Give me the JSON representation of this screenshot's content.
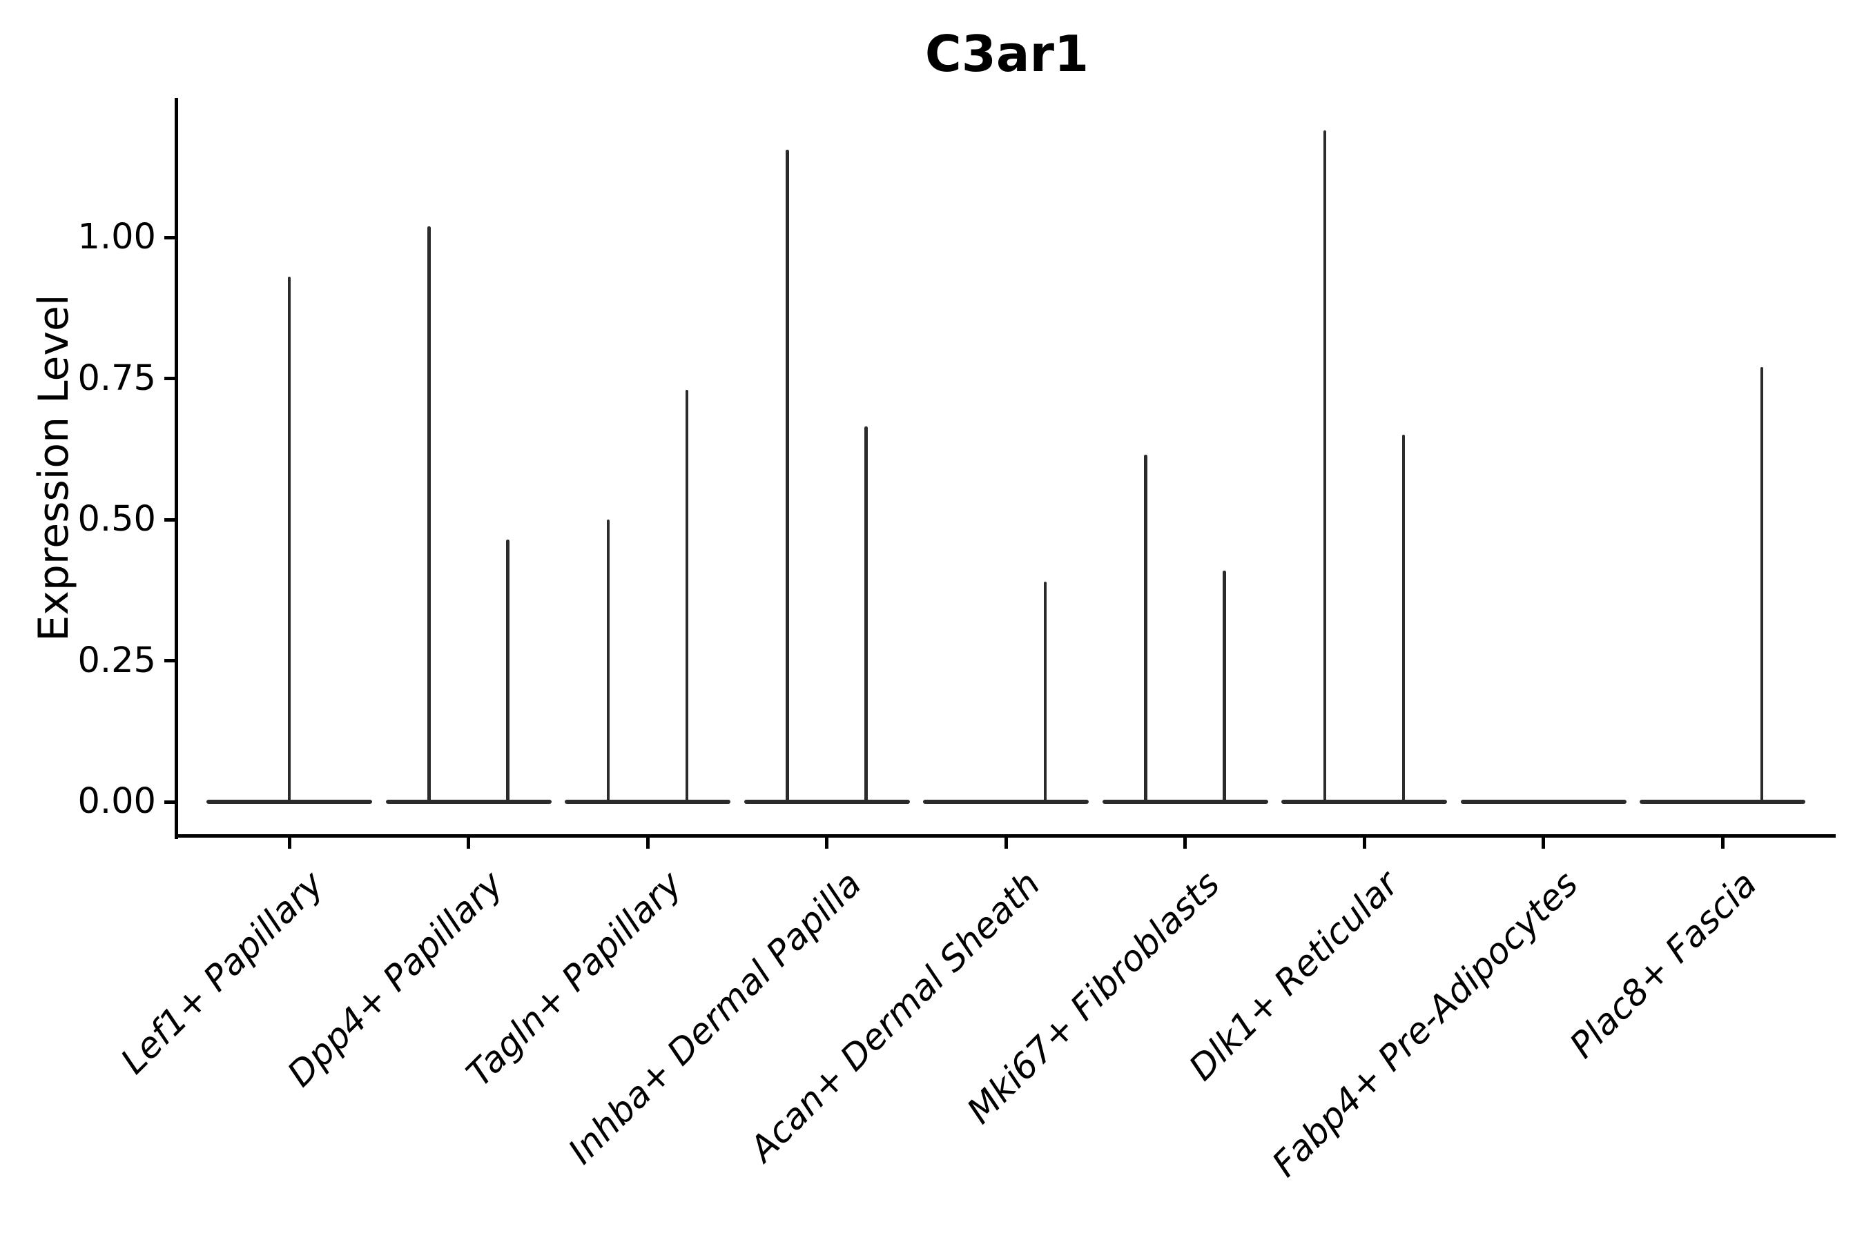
{
  "chart_data": {
    "type": "violin",
    "title": "C3ar1",
    "ylabel": "Expression Level",
    "xlabel": "",
    "grid": false,
    "legend": "none",
    "ylim": [
      -0.06,
      1.25
    ],
    "y_ticks": [
      {
        "value": 0.0,
        "label": "0.00"
      },
      {
        "value": 0.25,
        "label": "0.25"
      },
      {
        "value": 0.5,
        "label": "0.50"
      },
      {
        "value": 0.75,
        "label": "0.75"
      },
      {
        "value": 1.0,
        "label": "1.00"
      }
    ],
    "categories": [
      "Lef1+ Papillary",
      "Dpp4+ Papillary",
      "Tagln+ Papillary",
      "Inhba+ Dermal Papilla",
      "Acan+ Dermal Sheath",
      "Mki67+ Fibroblasts",
      "Dlk1+ Reticular",
      "Fabp4+ Pre-Adipocytes",
      "Plac8+ Fascia"
    ],
    "violins": [
      {
        "category": "Lef1+ Papillary",
        "baseline_value": 0,
        "spikes": [
          {
            "offset": 0.0,
            "max": 0.93
          }
        ]
      },
      {
        "category": "Dpp4+ Papillary",
        "baseline_value": 0,
        "spikes": [
          {
            "offset": -0.22,
            "max": 1.02
          },
          {
            "offset": 0.22,
            "max": 0.465
          }
        ]
      },
      {
        "category": "Tagln+ Papillary",
        "baseline_value": 0,
        "spikes": [
          {
            "offset": -0.22,
            "max": 0.5
          },
          {
            "offset": 0.22,
            "max": 0.73
          }
        ]
      },
      {
        "category": "Inhba+ Dermal Papilla",
        "baseline_value": 0,
        "spikes": [
          {
            "offset": -0.22,
            "max": 1.155
          },
          {
            "offset": 0.22,
            "max": 0.665
          }
        ]
      },
      {
        "category": "Acan+ Dermal Sheath",
        "baseline_value": 0,
        "spikes": [
          {
            "offset": 0.22,
            "max": 0.39
          }
        ]
      },
      {
        "category": "Mki67+ Fibroblasts",
        "baseline_value": 0,
        "spikes": [
          {
            "offset": -0.22,
            "max": 0.615
          },
          {
            "offset": 0.22,
            "max": 0.41
          }
        ]
      },
      {
        "category": "Dlk1+ Reticular",
        "baseline_value": 0,
        "spikes": [
          {
            "offset": -0.22,
            "max": 1.19
          },
          {
            "offset": 0.22,
            "max": 0.65
          }
        ]
      },
      {
        "category": "Fabp4+ Pre-Adipocytes",
        "baseline_value": 0,
        "spikes": []
      },
      {
        "category": "Plac8+ Fascia",
        "baseline_value": 0,
        "spikes": [
          {
            "offset": 0.22,
            "max": 0.77
          }
        ]
      }
    ],
    "style": {
      "violin_line_color": "#2b2b2b",
      "axis_color": "#000000",
      "text_color": "#000000",
      "background": "#ffffff"
    }
  }
}
